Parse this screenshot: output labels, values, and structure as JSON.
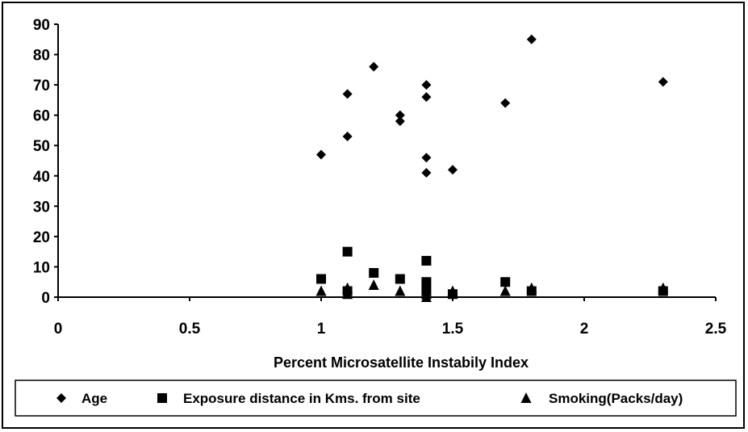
{
  "chart_data": {
    "type": "scatter",
    "title": "",
    "xlabel": "Percent Microsatellite Instabily Index",
    "ylabel": "",
    "xlim": [
      0,
      2.5
    ],
    "ylim": [
      0,
      90
    ],
    "x_ticks": [
      "0",
      "0.5",
      "1",
      "1.5",
      "2",
      "2.5"
    ],
    "y_ticks": [
      "0",
      "10",
      "20",
      "30",
      "40",
      "50",
      "60",
      "70",
      "80",
      "90"
    ],
    "grid": false,
    "legend_position": "bottom",
    "series": [
      {
        "name": "Age",
        "marker": "diamond",
        "points": [
          [
            1.0,
            47
          ],
          [
            1.1,
            67
          ],
          [
            1.1,
            53
          ],
          [
            1.2,
            76
          ],
          [
            1.3,
            60
          ],
          [
            1.3,
            58
          ],
          [
            1.4,
            70
          ],
          [
            1.4,
            66
          ],
          [
            1.4,
            46
          ],
          [
            1.4,
            41
          ],
          [
            1.5,
            42
          ],
          [
            1.7,
            64
          ],
          [
            1.8,
            85
          ],
          [
            2.3,
            71
          ]
        ]
      },
      {
        "name": "Exposure distance in Kms. from site",
        "marker": "square",
        "points": [
          [
            1.0,
            6
          ],
          [
            1.1,
            15
          ],
          [
            1.1,
            2
          ],
          [
            1.2,
            8
          ],
          [
            1.3,
            6
          ],
          [
            1.4,
            12
          ],
          [
            1.4,
            5
          ],
          [
            1.4,
            2
          ],
          [
            1.5,
            1
          ],
          [
            1.7,
            5
          ],
          [
            1.8,
            2
          ],
          [
            2.3,
            2
          ]
        ]
      },
      {
        "name": "Smoking(Packs/day)",
        "marker": "triangle",
        "points": [
          [
            1.0,
            2
          ],
          [
            1.1,
            3
          ],
          [
            1.1,
            1
          ],
          [
            1.2,
            4
          ],
          [
            1.3,
            2
          ],
          [
            1.4,
            2
          ],
          [
            1.4,
            1
          ],
          [
            1.4,
            0
          ],
          [
            1.5,
            2
          ],
          [
            1.7,
            2
          ],
          [
            1.8,
            3
          ],
          [
            2.3,
            3
          ]
        ]
      }
    ]
  }
}
